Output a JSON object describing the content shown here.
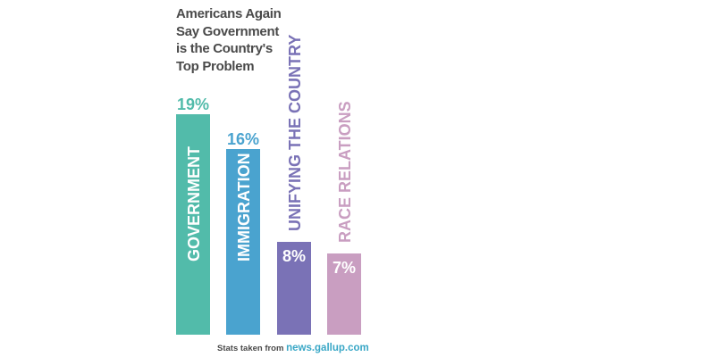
{
  "title_lines": [
    "Americans Again",
    "Say Government",
    "is the Country's",
    "Top Problem"
  ],
  "source": {
    "prefix": "Stats taken from",
    "link": "news.gallup.com"
  },
  "chart_data": {
    "type": "bar",
    "title": "Americans Again Say Government is the Country's Top Problem",
    "categories": [
      "GOVERNMENT",
      "IMMIGRATION",
      "UNIFYING THE COUNTRY",
      "RACE RELATIONS"
    ],
    "values": [
      19,
      16,
      8,
      7
    ],
    "value_labels": [
      "19%",
      "16%",
      "8%",
      "7%"
    ],
    "unit": "%",
    "colors": [
      "#52bbaa",
      "#4aa3cf",
      "#7a72b6",
      "#c99ec1"
    ],
    "value_label_colors": [
      "#52bbaa",
      "#4aa3cf",
      "#ffffff",
      "#ffffff"
    ],
    "category_label_colors": [
      "#ffffff",
      "#ffffff",
      "#7a72b6",
      "#c99ec1"
    ]
  }
}
